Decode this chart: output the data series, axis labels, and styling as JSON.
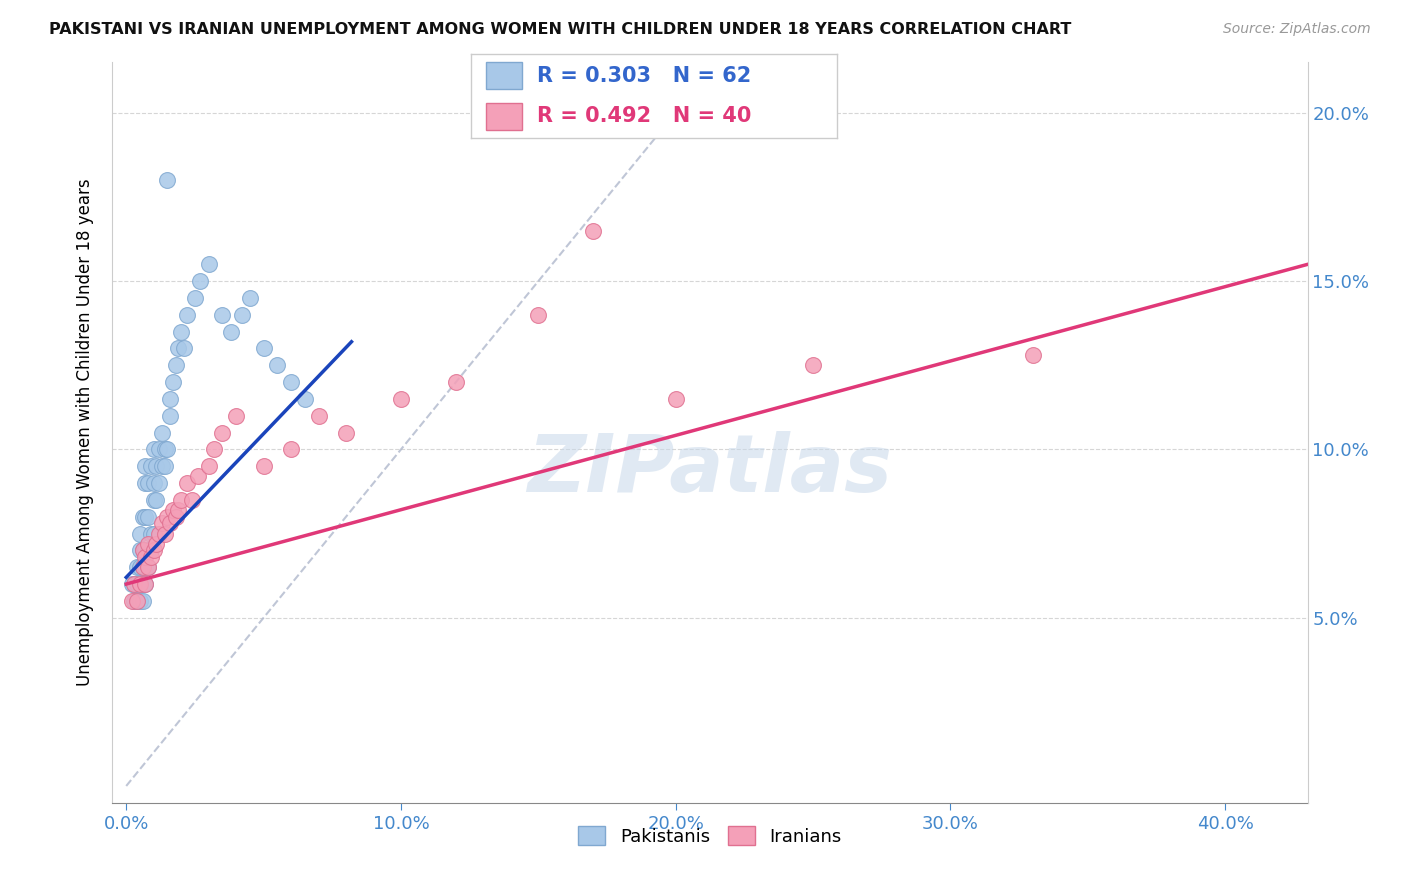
{
  "title": "PAKISTANI VS IRANIAN UNEMPLOYMENT AMONG WOMEN WITH CHILDREN UNDER 18 YEARS CORRELATION CHART",
  "source": "Source: ZipAtlas.com",
  "ylabel": "Unemployment Among Women with Children Under 18 years",
  "xlabel_ticks": [
    "0.0%",
    "10.0%",
    "20.0%",
    "30.0%",
    "40.0%"
  ],
  "xlabel_vals": [
    0.0,
    0.1,
    0.2,
    0.3,
    0.4
  ],
  "ylabel_ticks": [
    "5.0%",
    "10.0%",
    "15.0%",
    "20.0%"
  ],
  "ylabel_vals": [
    0.05,
    0.1,
    0.15,
    0.2
  ],
  "xlim": [
    -0.005,
    0.43
  ],
  "ylim": [
    -0.005,
    0.215
  ],
  "pakistani_R": 0.303,
  "pakistani_N": 62,
  "iranian_R": 0.492,
  "iranian_N": 40,
  "pakistani_color": "#a8c8e8",
  "pakistani_edge": "#80a8d0",
  "iranian_color": "#f4a0b8",
  "iranian_edge": "#e07090",
  "pakistani_line_color": "#1a44bb",
  "iranian_line_color": "#e03878",
  "diagonal_color": "#b0b8cc",
  "watermark": "ZIPatlas",
  "pakistani_x": [
    0.002,
    0.003,
    0.003,
    0.004,
    0.004,
    0.004,
    0.005,
    0.005,
    0.005,
    0.005,
    0.005,
    0.006,
    0.006,
    0.006,
    0.006,
    0.006,
    0.007,
    0.007,
    0.007,
    0.007,
    0.007,
    0.007,
    0.008,
    0.008,
    0.008,
    0.008,
    0.009,
    0.009,
    0.009,
    0.01,
    0.01,
    0.01,
    0.01,
    0.011,
    0.011,
    0.012,
    0.012,
    0.013,
    0.013,
    0.014,
    0.014,
    0.015,
    0.016,
    0.016,
    0.017,
    0.018,
    0.019,
    0.02,
    0.021,
    0.022,
    0.025,
    0.027,
    0.03,
    0.035,
    0.038,
    0.042,
    0.045,
    0.05,
    0.055,
    0.06,
    0.065,
    0.015
  ],
  "pakistani_y": [
    0.06,
    0.06,
    0.055,
    0.055,
    0.06,
    0.065,
    0.055,
    0.06,
    0.065,
    0.07,
    0.075,
    0.055,
    0.06,
    0.065,
    0.07,
    0.08,
    0.06,
    0.065,
    0.07,
    0.08,
    0.09,
    0.095,
    0.065,
    0.07,
    0.08,
    0.09,
    0.07,
    0.075,
    0.095,
    0.075,
    0.085,
    0.09,
    0.1,
    0.085,
    0.095,
    0.09,
    0.1,
    0.095,
    0.105,
    0.095,
    0.1,
    0.1,
    0.11,
    0.115,
    0.12,
    0.125,
    0.13,
    0.135,
    0.13,
    0.14,
    0.145,
    0.15,
    0.155,
    0.14,
    0.135,
    0.14,
    0.145,
    0.13,
    0.125,
    0.12,
    0.115,
    0.18
  ],
  "iranian_x": [
    0.002,
    0.003,
    0.004,
    0.005,
    0.006,
    0.006,
    0.007,
    0.007,
    0.008,
    0.008,
    0.009,
    0.01,
    0.011,
    0.012,
    0.013,
    0.014,
    0.015,
    0.016,
    0.017,
    0.018,
    0.019,
    0.02,
    0.022,
    0.024,
    0.026,
    0.03,
    0.032,
    0.035,
    0.04,
    0.05,
    0.06,
    0.07,
    0.08,
    0.1,
    0.12,
    0.15,
    0.17,
    0.2,
    0.25,
    0.33
  ],
  "iranian_y": [
    0.055,
    0.06,
    0.055,
    0.06,
    0.065,
    0.07,
    0.06,
    0.068,
    0.065,
    0.072,
    0.068,
    0.07,
    0.072,
    0.075,
    0.078,
    0.075,
    0.08,
    0.078,
    0.082,
    0.08,
    0.082,
    0.085,
    0.09,
    0.085,
    0.092,
    0.095,
    0.1,
    0.105,
    0.11,
    0.095,
    0.1,
    0.11,
    0.105,
    0.115,
    0.12,
    0.14,
    0.165,
    0.115,
    0.125,
    0.128
  ],
  "pak_line_x": [
    0.0,
    0.082
  ],
  "pak_line_y": [
    0.062,
    0.132
  ],
  "iran_line_x": [
    0.0,
    0.43
  ],
  "iran_line_y": [
    0.06,
    0.155
  ],
  "diag_line_x": [
    0.0,
    0.215
  ],
  "diag_line_y": [
    0.0,
    0.215
  ]
}
